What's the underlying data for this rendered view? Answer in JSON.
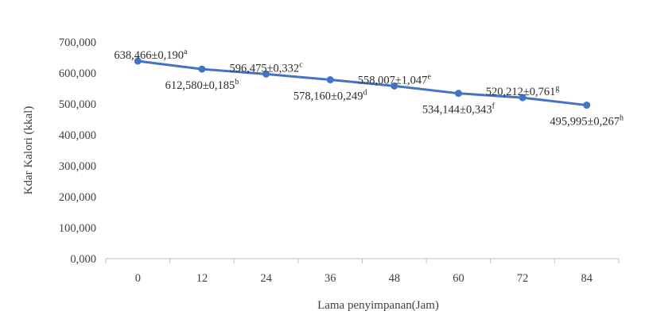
{
  "chart_data": {
    "type": "line",
    "title": "",
    "xlabel": "Lama penyimpanan(Jam)",
    "ylabel": "Kdar Kalori (kkal)",
    "ylim": [
      0,
      700
    ],
    "yticks": [
      "0,000",
      "100,000",
      "200,000",
      "300,000",
      "400,000",
      "500,000",
      "600,000",
      "700,000"
    ],
    "ytick_values": [
      0,
      100,
      200,
      300,
      400,
      500,
      600,
      700
    ],
    "categories": [
      "0",
      "12",
      "24",
      "36",
      "48",
      "60",
      "72",
      "84"
    ],
    "grid": false,
    "legend": "none",
    "colors": {
      "line": "#4472C4",
      "axis": "#bfbfbf",
      "text": "#404040"
    },
    "series": [
      {
        "values": [
          638.466,
          612.58,
          596.475,
          578.16,
          558.007,
          534.144,
          520.212,
          495.995
        ],
        "labels": [
          {
            "text": "638,466±0,190",
            "sup": "a",
            "pos": "above"
          },
          {
            "text": "612,580±0,185",
            "sup": "b",
            "pos": "below"
          },
          {
            "text": "596,475±0,332",
            "sup": "c",
            "pos": "above"
          },
          {
            "text": "578,160±0,249",
            "sup": "d",
            "pos": "below"
          },
          {
            "text": "558,007±1,047",
            "sup": "e",
            "pos": "above"
          },
          {
            "text": "534,144±0,343",
            "sup": "f",
            "pos": "below"
          },
          {
            "text": "520,212±0,761",
            "sup": "g",
            "pos": "above"
          },
          {
            "text": "495,995±0,267",
            "sup": "h",
            "pos": "below"
          }
        ]
      }
    ]
  }
}
